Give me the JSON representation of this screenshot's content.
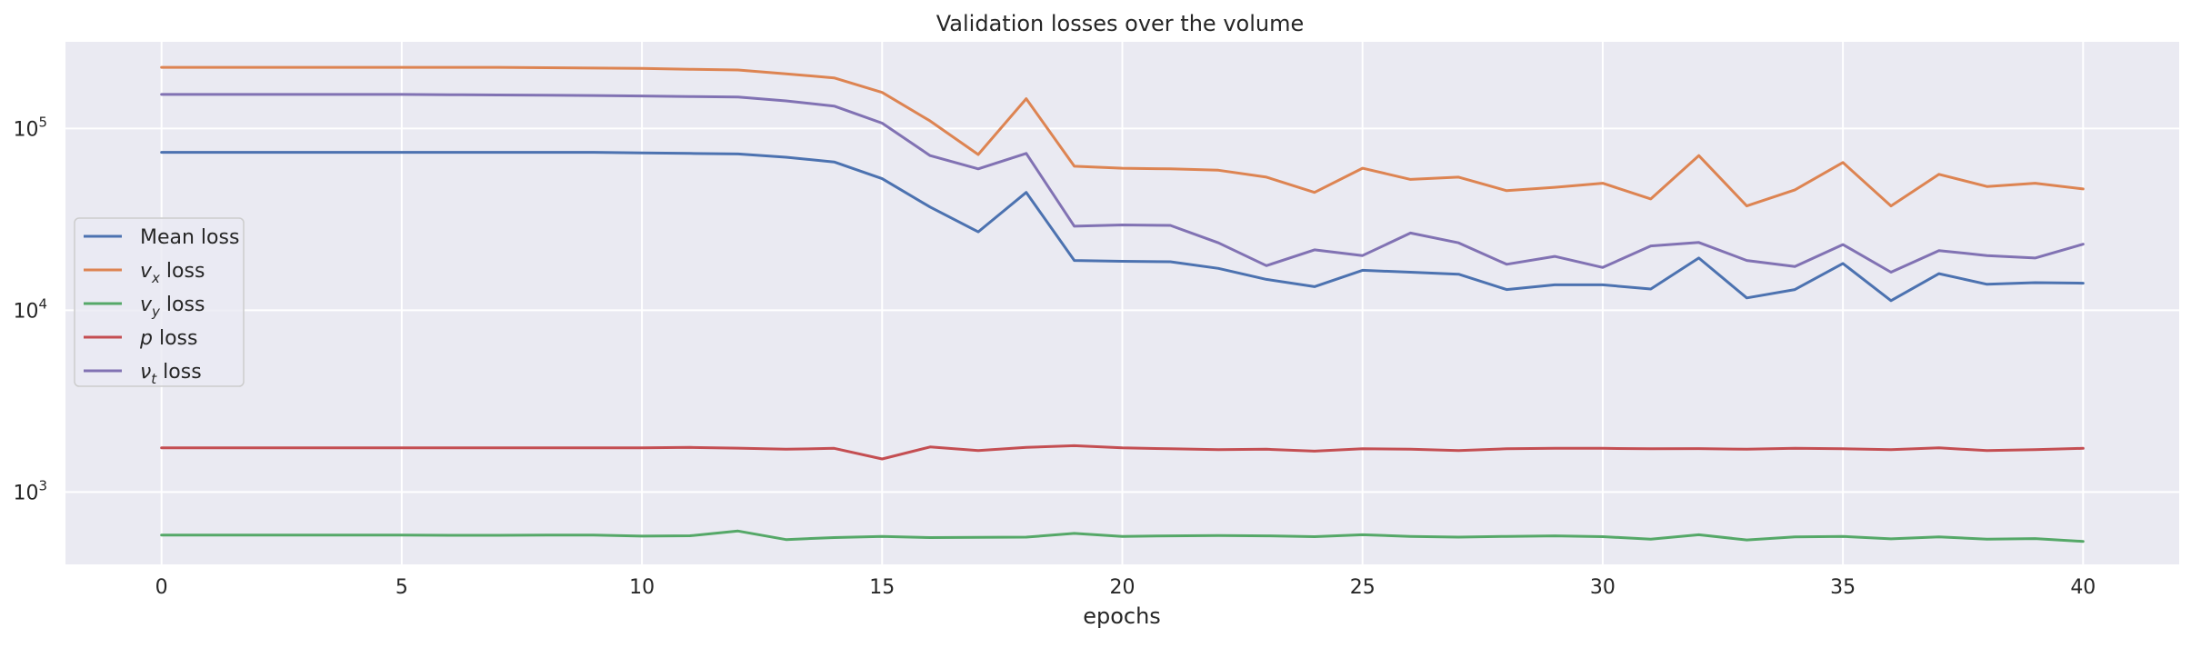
{
  "chart_data": {
    "type": "line",
    "title": "Validation losses over the volume",
    "xlabel": "epochs",
    "ylabel": "",
    "yscale": "log",
    "xlim": [
      -2,
      42
    ],
    "ylim": [
      400,
      300000
    ],
    "grid": true,
    "legend_position": "center-left",
    "x_ticks": [
      0,
      5,
      10,
      15,
      20,
      25,
      30,
      35,
      40
    ],
    "y_ticks": [
      {
        "value": 1000,
        "base": "10",
        "exp": "3"
      },
      {
        "value": 10000,
        "base": "10",
        "exp": "4"
      },
      {
        "value": 100000,
        "base": "10",
        "exp": "5"
      }
    ],
    "x": [
      0,
      1,
      2,
      3,
      4,
      5,
      6,
      7,
      8,
      9,
      10,
      11,
      12,
      13,
      14,
      15,
      16,
      17,
      18,
      19,
      20,
      21,
      22,
      23,
      24,
      25,
      26,
      27,
      28,
      29,
      30,
      31,
      32,
      33,
      34,
      35,
      36,
      37,
      38,
      39,
      40
    ],
    "series": [
      {
        "name_main": "Mean loss",
        "name_sub": "",
        "name_suffix": "",
        "color": "#4c72b0",
        "values": [
          74000,
          74000,
          74000,
          74000,
          74000,
          74000,
          74000,
          74000,
          74000,
          74000,
          73500,
          73000,
          72500,
          69500,
          65500,
          53000,
          37000,
          27000,
          44500,
          18800,
          18600,
          18500,
          17000,
          14800,
          13500,
          16600,
          16200,
          15800,
          13000,
          13800,
          13800,
          13100,
          19400,
          11700,
          13000,
          18100,
          11300,
          15900,
          13900,
          14200,
          14100
        ]
      },
      {
        "name_main": "v",
        "name_sub": "x",
        "name_suffix": " loss",
        "color": "#dd8452",
        "values": [
          217000,
          217000,
          217000,
          217000,
          217000,
          217000,
          217000,
          217000,
          216000,
          215000,
          214000,
          212000,
          210000,
          200000,
          190000,
          158000,
          110000,
          72000,
          146000,
          62000,
          60500,
          60000,
          59000,
          54000,
          44500,
          60500,
          52500,
          54000,
          45500,
          47500,
          50000,
          41000,
          71000,
          37500,
          46000,
          65000,
          37500,
          56000,
          48000,
          50000,
          46500
        ]
      },
      {
        "name_main": "v",
        "name_sub": "y",
        "name_suffix": " loss",
        "color": "#55a868",
        "values": [
          580,
          580,
          580,
          580,
          580,
          580,
          578,
          578,
          580,
          580,
          572,
          575,
          610,
          548,
          562,
          570,
          562,
          564,
          565,
          592,
          570,
          574,
          576,
          574,
          568,
          582,
          570,
          565,
          570,
          574,
          568,
          550,
          582,
          545,
          567,
          570,
          553,
          567,
          550,
          555,
          535
        ]
      },
      {
        "name_main": "p",
        "name_sub": "",
        "name_suffix": " loss",
        "color": "#c44e52",
        "values": [
          1750,
          1750,
          1750,
          1750,
          1750,
          1750,
          1750,
          1750,
          1750,
          1750,
          1750,
          1760,
          1745,
          1720,
          1740,
          1520,
          1770,
          1690,
          1760,
          1800,
          1750,
          1730,
          1710,
          1720,
          1680,
          1730,
          1720,
          1690,
          1730,
          1740,
          1740,
          1730,
          1735,
          1720,
          1740,
          1730,
          1710,
          1750,
          1690,
          1710,
          1740
        ]
      },
      {
        "name_main": "ν",
        "name_sub": "t",
        "name_suffix": " loss",
        "color": "#8172b3",
        "values": [
          154000,
          154000,
          154000,
          154000,
          154000,
          154000,
          153500,
          153000,
          152500,
          152000,
          151000,
          150000,
          149000,
          142000,
          133000,
          107000,
          71000,
          60000,
          73000,
          29000,
          29500,
          29300,
          23500,
          17600,
          21500,
          20000,
          26600,
          23500,
          17900,
          19800,
          17200,
          22600,
          23600,
          18800,
          17400,
          23000,
          16200,
          21300,
          20000,
          19400,
          23100
        ]
      }
    ]
  }
}
